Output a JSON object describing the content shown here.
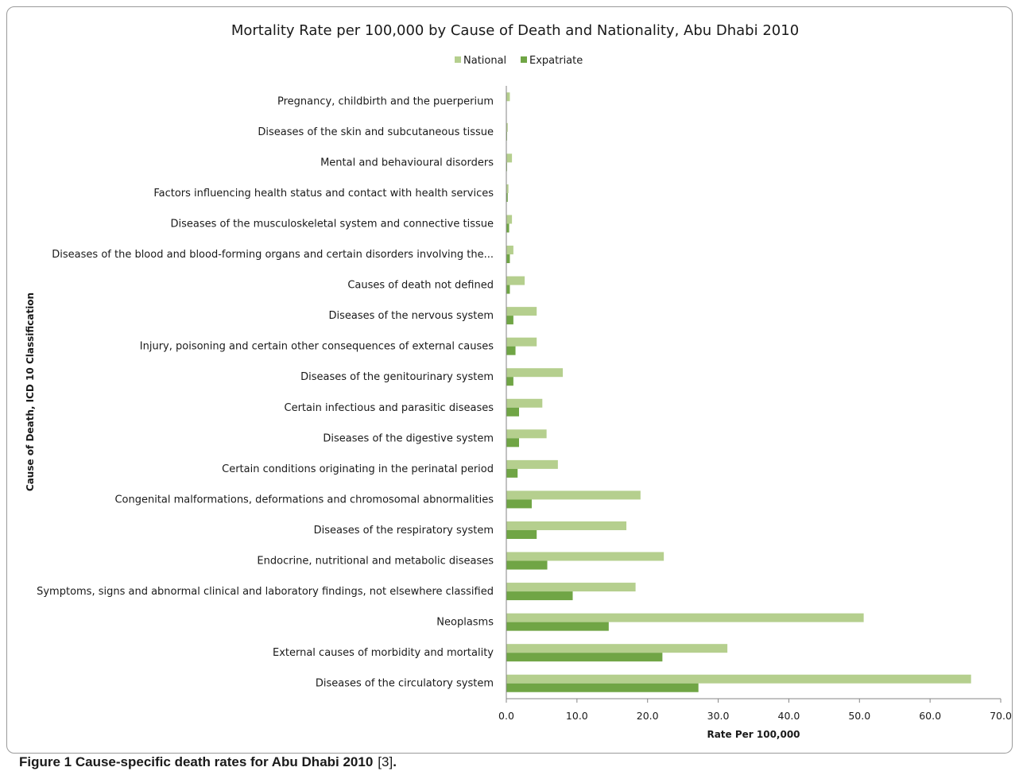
{
  "caption": {
    "label": "Figure 1",
    "text": "Cause-specific death rates for Abu Dhabi 2010",
    "ref": "[3]",
    "end": "."
  },
  "chart_data": {
    "type": "bar",
    "orientation": "horizontal",
    "title": "Mortality Rate per 100,000 by Cause of Death and Nationality, Abu Dhabi 2010",
    "xlabel": "Rate Per 100,000",
    "ylabel": "Cause of Death, ICD 10 Classification",
    "xlim": [
      0,
      70
    ],
    "xticks": [
      "0.0",
      "10.0",
      "20.0",
      "30.0",
      "40.0",
      "50.0",
      "60.0",
      "70.0"
    ],
    "grid": false,
    "legend_position": "top",
    "categories": [
      "Pregnancy, childbirth and the puerperium",
      "Diseases of the skin and subcutaneous tissue",
      "Mental and behavioural disorders",
      "Factors influencing health status and contact with health services",
      "Diseases of the musculoskeletal system and connective tissue",
      "Diseases of the blood and blood-forming organs and certain disorders involving the...",
      "Causes of death not defined",
      "Diseases of the nervous system",
      "Injury, poisoning and certain other consequences of external causes",
      "Diseases of the genitourinary system",
      "Certain infectious and parasitic diseases",
      "Diseases of the digestive system",
      "Certain conditions originating in the perinatal period",
      "Congenital malformations, deformations and chromosomal abnormalities",
      "Diseases of the respiratory system",
      "Endocrine, nutritional and metabolic diseases",
      "Symptoms, signs and abnormal clinical and laboratory findings, not elsewhere classified",
      "Neoplasms",
      "External causes of morbidity and mortality",
      "Diseases of the circulatory system"
    ],
    "series": [
      {
        "name": "National",
        "color": "#b5cf8e",
        "values": [
          0.5,
          0.2,
          0.8,
          0.3,
          0.8,
          1.0,
          2.6,
          4.3,
          4.3,
          8.0,
          5.1,
          5.7,
          7.3,
          19.0,
          17.0,
          22.3,
          18.3,
          50.6,
          31.3,
          65.8
        ]
      },
      {
        "name": "Expatriate",
        "color": "#70a545",
        "values": [
          0.0,
          0.1,
          0.1,
          0.2,
          0.4,
          0.5,
          0.5,
          1.0,
          1.3,
          1.0,
          1.8,
          1.8,
          1.6,
          3.6,
          4.3,
          5.8,
          9.4,
          14.5,
          22.1,
          27.2
        ]
      }
    ]
  }
}
